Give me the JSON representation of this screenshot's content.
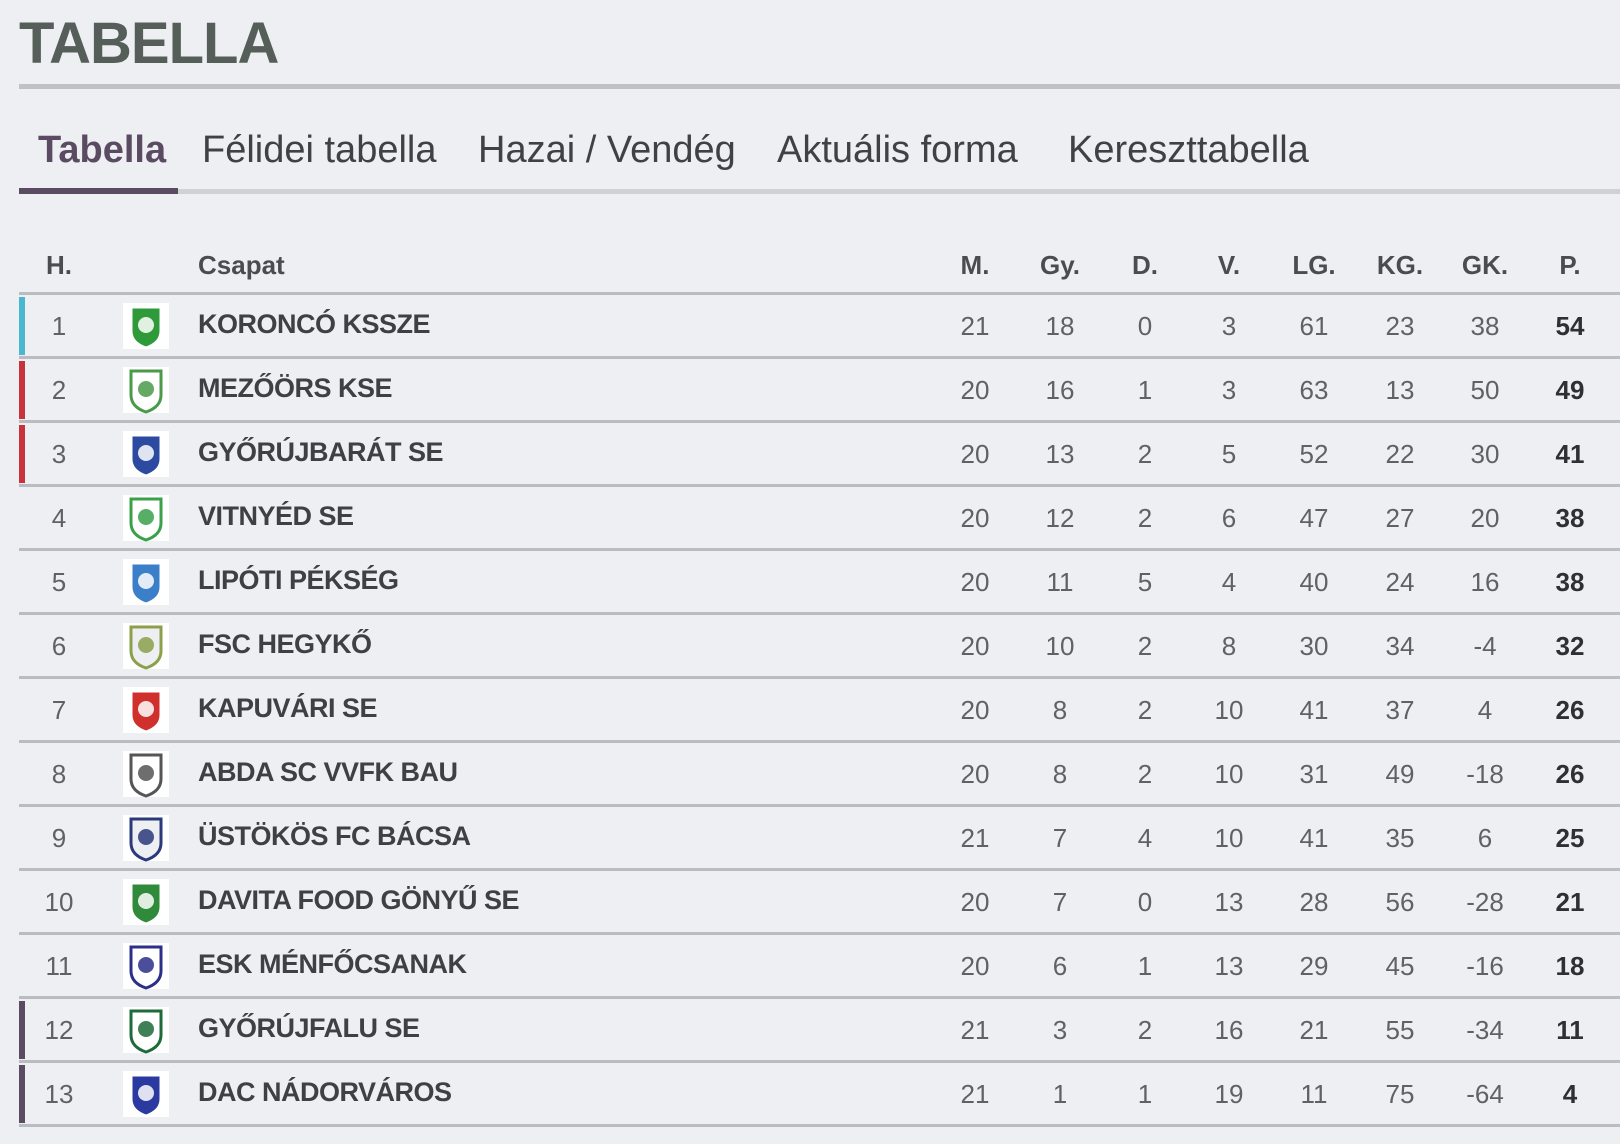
{
  "page_title": "TABELLA",
  "tabs": [
    {
      "label": "Tabella",
      "active": true
    },
    {
      "label": "Félidei tabella",
      "active": false
    },
    {
      "label": "Hazai / Vendég",
      "active": false
    },
    {
      "label": "Aktuális forma",
      "active": false
    },
    {
      "label": "Kereszttabella",
      "active": false
    }
  ],
  "columns": {
    "pos": "H.",
    "team": "Csapat",
    "m": "M.",
    "gy": "Gy.",
    "d": "D.",
    "v": "V.",
    "lg": "LG.",
    "kg": "KG.",
    "gk": "GK.",
    "p": "P."
  },
  "marker_colors": {
    "promotion": "#4bb6d0",
    "playoff": "#c8323c",
    "relegation": "#5a4a62"
  },
  "rows": [
    {
      "pos": "1",
      "team": "KORONCÓ KSSZE",
      "m": "21",
      "gy": "18",
      "d": "0",
      "v": "3",
      "lg": "61",
      "kg": "23",
      "gk": "38",
      "p": "54",
      "marker": "promotion",
      "logo_colors": [
        "#2f9a3a",
        "#ffffff"
      ]
    },
    {
      "pos": "2",
      "team": "MEZŐÖRS KSE",
      "m": "20",
      "gy": "16",
      "d": "1",
      "v": "3",
      "lg": "63",
      "kg": "13",
      "gk": "50",
      "p": "49",
      "marker": "playoff",
      "logo_colors": [
        "#ffffff",
        "#4a9a4a"
      ]
    },
    {
      "pos": "3",
      "team": "GYŐRÚJBARÁT SE",
      "m": "20",
      "gy": "13",
      "d": "2",
      "v": "5",
      "lg": "52",
      "kg": "22",
      "gk": "30",
      "p": "41",
      "marker": "playoff",
      "logo_colors": [
        "#2c4aa0",
        "#ffffff"
      ]
    },
    {
      "pos": "4",
      "team": "VITNYÉD SE",
      "m": "20",
      "gy": "12",
      "d": "2",
      "v": "6",
      "lg": "47",
      "kg": "27",
      "gk": "20",
      "p": "38",
      "marker": null,
      "logo_colors": [
        "#ffffff",
        "#3aa04a"
      ]
    },
    {
      "pos": "5",
      "team": "LIPÓTI PÉKSÉG",
      "m": "20",
      "gy": "11",
      "d": "5",
      "v": "4",
      "lg": "40",
      "kg": "24",
      "gk": "16",
      "p": "38",
      "marker": null,
      "logo_colors": [
        "#3b7fc8",
        "#ffffff"
      ]
    },
    {
      "pos": "6",
      "team": "FSC HEGYKŐ",
      "m": "20",
      "gy": "10",
      "d": "2",
      "v": "8",
      "lg": "30",
      "kg": "34",
      "gk": "-4",
      "p": "32",
      "marker": null,
      "logo_colors": [
        "#eeeff3",
        "#8aa04a"
      ]
    },
    {
      "pos": "7",
      "team": "KAPUVÁRI SE",
      "m": "20",
      "gy": "8",
      "d": "2",
      "v": "10",
      "lg": "41",
      "kg": "37",
      "gk": "4",
      "p": "26",
      "marker": null,
      "logo_colors": [
        "#d0302c",
        "#ffffff"
      ]
    },
    {
      "pos": "8",
      "team": "ABDA SC VVFK BAU",
      "m": "20",
      "gy": "8",
      "d": "2",
      "v": "10",
      "lg": "31",
      "kg": "49",
      "gk": "-18",
      "p": "26",
      "marker": null,
      "logo_colors": [
        "#ffffff",
        "#555555"
      ]
    },
    {
      "pos": "9",
      "team": "ÜSTÖKÖS FC BÁCSA",
      "m": "21",
      "gy": "7",
      "d": "4",
      "v": "10",
      "lg": "41",
      "kg": "35",
      "gk": "6",
      "p": "25",
      "marker": null,
      "logo_colors": [
        "#eeeff3",
        "#2a3a7a"
      ]
    },
    {
      "pos": "10",
      "team": "DAVITA FOOD GÖNYŰ SE",
      "m": "20",
      "gy": "7",
      "d": "0",
      "v": "13",
      "lg": "28",
      "kg": "56",
      "gk": "-28",
      "p": "21",
      "marker": null,
      "logo_colors": [
        "#2f8a3a",
        "#ffffff"
      ]
    },
    {
      "pos": "11",
      "team": "ESK MÉNFŐCSANAK",
      "m": "20",
      "gy": "6",
      "d": "1",
      "v": "13",
      "lg": "29",
      "kg": "45",
      "gk": "-16",
      "p": "18",
      "marker": null,
      "logo_colors": [
        "#ffffff",
        "#2c2f8a"
      ]
    },
    {
      "pos": "12",
      "team": "GYŐRÚJFALU  SE",
      "m": "21",
      "gy": "3",
      "d": "2",
      "v": "16",
      "lg": "21",
      "kg": "55",
      "gk": "-34",
      "p": "11",
      "marker": "relegation",
      "logo_colors": [
        "#ffffff",
        "#1f6a3a"
      ]
    },
    {
      "pos": "13",
      "team": "DAC NÁDORVÁROS",
      "m": "21",
      "gy": "1",
      "d": "1",
      "v": "19",
      "lg": "11",
      "kg": "75",
      "gk": "-64",
      "p": "4",
      "marker": "relegation",
      "logo_colors": [
        "#2a3aa0",
        "#ffffff"
      ]
    }
  ]
}
